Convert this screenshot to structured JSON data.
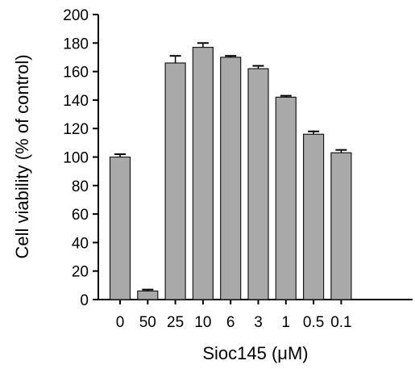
{
  "chart_data": {
    "type": "bar",
    "categories": [
      "0",
      "50",
      "25",
      "10",
      "6",
      "3",
      "1",
      "0.5",
      "0.1"
    ],
    "values": [
      100,
      6,
      166,
      177,
      170,
      162,
      142,
      116,
      103
    ],
    "errors": [
      2,
      1,
      5,
      3,
      1,
      2,
      1,
      2,
      2
    ],
    "xlabel": "Sioc145 (μM)",
    "ylabel": "Cell viability (% of control)",
    "ylim": [
      0,
      200
    ],
    "yticks": [
      0,
      20,
      40,
      60,
      80,
      100,
      120,
      140,
      160,
      180,
      200
    ],
    "bar_color": "#a9a9a9",
    "bar_edge_color": "#1a1a1a",
    "grid": false,
    "legend": "none"
  }
}
